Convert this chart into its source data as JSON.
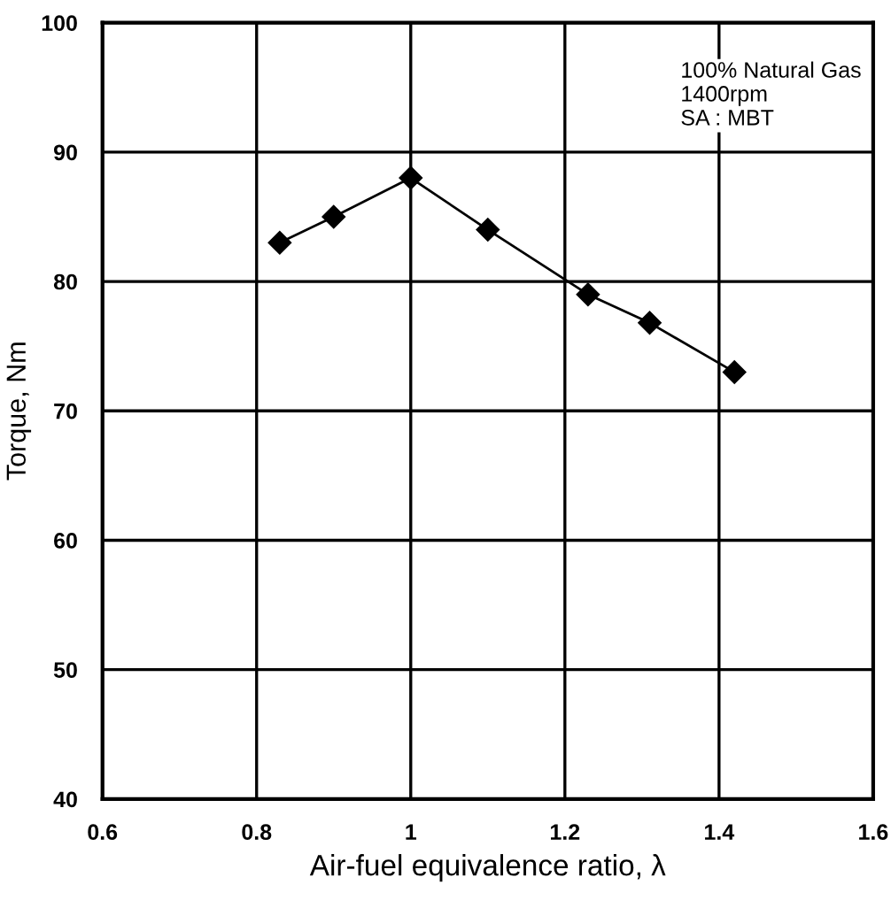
{
  "chart_data": {
    "type": "line",
    "xlabel": "Air-fuel equivalence ratio, λ",
    "ylabel": "Torque, Nm",
    "x": [
      0.83,
      0.9,
      1.0,
      1.1,
      1.23,
      1.31,
      1.42
    ],
    "series": [
      {
        "color": "#000000",
        "values": [
          83,
          85,
          88,
          84,
          79,
          76.8,
          73
        ]
      }
    ],
    "xlim": [
      0.6,
      1.6
    ],
    "xticks": [
      0.6,
      0.8,
      {
        "value": 1,
        "label": "1"
      },
      1.2,
      1.4,
      1.6
    ],
    "ylim": [
      40,
      100
    ],
    "yticks": [
      40,
      50,
      60,
      70,
      80,
      90,
      100
    ],
    "grid": true,
    "marker": "diamond",
    "line_style": "solid",
    "annotations": [
      "100% Natural Gas\n1400rpm\nSA : MBT"
    ]
  }
}
